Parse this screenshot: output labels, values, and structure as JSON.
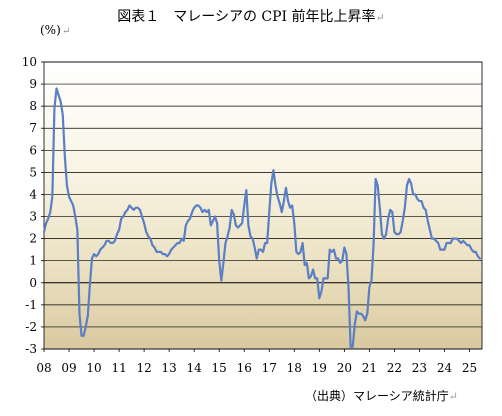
{
  "title": "図表１　マレーシアの CPI 前年比上昇率",
  "source": "（出典）マレーシア統計庁",
  "return_mark": "↵",
  "chart_data": {
    "type": "line",
    "ylabel": "(%)",
    "ylim": [
      -3,
      10
    ],
    "yticks": [
      10,
      9,
      8,
      7,
      6,
      5,
      4,
      3,
      2,
      1,
      0,
      -1,
      -2,
      -3
    ],
    "x_tick_labels": [
      "08",
      "09",
      "10",
      "11",
      "12",
      "13",
      "14",
      "15",
      "16",
      "17",
      "18",
      "19",
      "20",
      "21",
      "22",
      "23",
      "24",
      "25"
    ],
    "x_unit": "year (2008–2025, monthly)",
    "grid": true,
    "series": [
      {
        "color": "#5b7fc4",
        "points": [
          [
            "2008-01",
            2.3
          ],
          [
            "2008-02",
            2.7
          ],
          [
            "2008-03",
            2.9
          ],
          [
            "2008-04",
            3.2
          ],
          [
            "2008-05",
            3.9
          ],
          [
            "2008-06",
            7.9
          ],
          [
            "2008-07",
            8.8
          ],
          [
            "2008-08",
            8.5
          ],
          [
            "2008-09",
            8.2
          ],
          [
            "2008-10",
            7.6
          ],
          [
            "2008-11",
            5.7
          ],
          [
            "2008-12",
            4.4
          ],
          [
            "2009-01",
            3.9
          ],
          [
            "2009-02",
            3.7
          ],
          [
            "2009-03",
            3.5
          ],
          [
            "2009-04",
            3.0
          ],
          [
            "2009-05",
            2.4
          ],
          [
            "2009-06",
            -1.4
          ],
          [
            "2009-07",
            -2.4
          ],
          [
            "2009-08",
            -2.4
          ],
          [
            "2009-09",
            -2.0
          ],
          [
            "2009-10",
            -1.5
          ],
          [
            "2009-11",
            -0.1
          ],
          [
            "2009-12",
            1.1
          ],
          [
            "2010-01",
            1.3
          ],
          [
            "2010-02",
            1.2
          ],
          [
            "2010-03",
            1.3
          ],
          [
            "2010-04",
            1.5
          ],
          [
            "2010-05",
            1.6
          ],
          [
            "2010-06",
            1.7
          ],
          [
            "2010-07",
            1.9
          ],
          [
            "2010-08",
            1.9
          ],
          [
            "2010-09",
            1.8
          ],
          [
            "2010-10",
            1.8
          ],
          [
            "2010-11",
            1.9
          ],
          [
            "2010-12",
            2.2
          ],
          [
            "2011-01",
            2.4
          ],
          [
            "2011-02",
            2.9
          ],
          [
            "2011-03",
            3.0
          ],
          [
            "2011-04",
            3.2
          ],
          [
            "2011-05",
            3.3
          ],
          [
            "2011-06",
            3.5
          ],
          [
            "2011-07",
            3.4
          ],
          [
            "2011-08",
            3.3
          ],
          [
            "2011-09",
            3.4
          ],
          [
            "2011-10",
            3.4
          ],
          [
            "2011-11",
            3.3
          ],
          [
            "2011-12",
            3.0
          ],
          [
            "2012-01",
            2.7
          ],
          [
            "2012-02",
            2.3
          ],
          [
            "2012-03",
            2.1
          ],
          [
            "2012-04",
            2.0
          ],
          [
            "2012-05",
            1.7
          ],
          [
            "2012-06",
            1.6
          ],
          [
            "2012-07",
            1.4
          ],
          [
            "2012-08",
            1.4
          ],
          [
            "2012-09",
            1.4
          ],
          [
            "2012-10",
            1.3
          ],
          [
            "2012-11",
            1.3
          ],
          [
            "2012-12",
            1.2
          ],
          [
            "2013-01",
            1.3
          ],
          [
            "2013-02",
            1.5
          ],
          [
            "2013-03",
            1.6
          ],
          [
            "2013-04",
            1.7
          ],
          [
            "2013-05",
            1.8
          ],
          [
            "2013-06",
            1.8
          ],
          [
            "2013-07",
            2.0
          ],
          [
            "2013-08",
            1.9
          ],
          [
            "2013-09",
            2.6
          ],
          [
            "2013-10",
            2.8
          ],
          [
            "2013-11",
            2.9
          ],
          [
            "2013-12",
            3.2
          ],
          [
            "2014-01",
            3.4
          ],
          [
            "2014-02",
            3.5
          ],
          [
            "2014-03",
            3.5
          ],
          [
            "2014-04",
            3.4
          ],
          [
            "2014-05",
            3.2
          ],
          [
            "2014-06",
            3.3
          ],
          [
            "2014-07",
            3.2
          ],
          [
            "2014-08",
            3.3
          ],
          [
            "2014-09",
            2.6
          ],
          [
            "2014-10",
            2.8
          ],
          [
            "2014-11",
            3.0
          ],
          [
            "2014-12",
            2.7
          ],
          [
            "2015-01",
            1.0
          ],
          [
            "2015-02",
            0.1
          ],
          [
            "2015-03",
            0.9
          ],
          [
            "2015-04",
            1.8
          ],
          [
            "2015-05",
            2.1
          ],
          [
            "2015-06",
            2.5
          ],
          [
            "2015-07",
            3.3
          ],
          [
            "2015-08",
            3.1
          ],
          [
            "2015-09",
            2.6
          ],
          [
            "2015-10",
            2.5
          ],
          [
            "2015-11",
            2.6
          ],
          [
            "2015-12",
            2.7
          ],
          [
            "2016-01",
            3.5
          ],
          [
            "2016-02",
            4.2
          ],
          [
            "2016-03",
            2.6
          ],
          [
            "2016-04",
            2.1
          ],
          [
            "2016-05",
            2.0
          ],
          [
            "2016-06",
            1.6
          ],
          [
            "2016-07",
            1.1
          ],
          [
            "2016-08",
            1.5
          ],
          [
            "2016-09",
            1.5
          ],
          [
            "2016-10",
            1.4
          ],
          [
            "2016-11",
            1.8
          ],
          [
            "2016-12",
            1.8
          ],
          [
            "2017-01",
            3.2
          ],
          [
            "2017-02",
            4.5
          ],
          [
            "2017-03",
            5.1
          ],
          [
            "2017-04",
            4.4
          ],
          [
            "2017-05",
            3.9
          ],
          [
            "2017-06",
            3.6
          ],
          [
            "2017-07",
            3.2
          ],
          [
            "2017-08",
            3.7
          ],
          [
            "2017-09",
            4.3
          ],
          [
            "2017-10",
            3.7
          ],
          [
            "2017-11",
            3.4
          ],
          [
            "2017-12",
            3.5
          ],
          [
            "2018-01",
            2.7
          ],
          [
            "2018-02",
            1.4
          ],
          [
            "2018-03",
            1.3
          ],
          [
            "2018-04",
            1.4
          ],
          [
            "2018-05",
            1.8
          ],
          [
            "2018-06",
            0.8
          ],
          [
            "2018-07",
            0.9
          ],
          [
            "2018-08",
            0.2
          ],
          [
            "2018-09",
            0.3
          ],
          [
            "2018-10",
            0.6
          ],
          [
            "2018-11",
            0.2
          ],
          [
            "2018-12",
            0.2
          ],
          [
            "2019-01",
            -0.7
          ],
          [
            "2019-02",
            -0.4
          ],
          [
            "2019-03",
            0.2
          ],
          [
            "2019-04",
            0.2
          ],
          [
            "2019-05",
            0.2
          ],
          [
            "2019-06",
            1.5
          ],
          [
            "2019-07",
            1.4
          ],
          [
            "2019-08",
            1.5
          ],
          [
            "2019-09",
            1.1
          ],
          [
            "2019-10",
            1.1
          ],
          [
            "2019-11",
            0.9
          ],
          [
            "2019-12",
            1.0
          ],
          [
            "2020-01",
            1.6
          ],
          [
            "2020-02",
            1.3
          ],
          [
            "2020-03",
            -0.2
          ],
          [
            "2020-04",
            -2.9
          ],
          [
            "2020-05",
            -2.9
          ],
          [
            "2020-06",
            -1.9
          ],
          [
            "2020-07",
            -1.3
          ],
          [
            "2020-08",
            -1.4
          ],
          [
            "2020-09",
            -1.4
          ],
          [
            "2020-10",
            -1.5
          ],
          [
            "2020-11",
            -1.7
          ],
          [
            "2020-12",
            -1.4
          ],
          [
            "2021-01",
            -0.2
          ],
          [
            "2021-02",
            0.1
          ],
          [
            "2021-03",
            1.7
          ],
          [
            "2021-04",
            4.7
          ],
          [
            "2021-05",
            4.4
          ],
          [
            "2021-06",
            3.4
          ],
          [
            "2021-07",
            2.2
          ],
          [
            "2021-08",
            2.0
          ],
          [
            "2021-09",
            2.2
          ],
          [
            "2021-10",
            2.9
          ],
          [
            "2021-11",
            3.3
          ],
          [
            "2021-12",
            3.2
          ],
          [
            "2022-01",
            2.3
          ],
          [
            "2022-02",
            2.2
          ],
          [
            "2022-03",
            2.2
          ],
          [
            "2022-04",
            2.3
          ],
          [
            "2022-05",
            2.8
          ],
          [
            "2022-06",
            3.4
          ],
          [
            "2022-07",
            4.4
          ],
          [
            "2022-08",
            4.7
          ],
          [
            "2022-09",
            4.5
          ],
          [
            "2022-10",
            4.0
          ],
          [
            "2022-11",
            4.0
          ],
          [
            "2022-12",
            3.8
          ],
          [
            "2023-01",
            3.7
          ],
          [
            "2023-02",
            3.7
          ],
          [
            "2023-03",
            3.4
          ],
          [
            "2023-04",
            3.3
          ],
          [
            "2023-05",
            2.8
          ],
          [
            "2023-06",
            2.4
          ],
          [
            "2023-07",
            2.0
          ],
          [
            "2023-08",
            2.0
          ],
          [
            "2023-09",
            1.9
          ],
          [
            "2023-10",
            1.8
          ],
          [
            "2023-11",
            1.5
          ],
          [
            "2023-12",
            1.5
          ],
          [
            "2024-01",
            1.5
          ],
          [
            "2024-02",
            1.8
          ],
          [
            "2024-03",
            1.8
          ],
          [
            "2024-04",
            1.8
          ],
          [
            "2024-05",
            2.0
          ],
          [
            "2024-06",
            2.0
          ],
          [
            "2024-07",
            2.0
          ],
          [
            "2024-08",
            1.9
          ],
          [
            "2024-09",
            1.8
          ],
          [
            "2024-10",
            1.9
          ],
          [
            "2024-11",
            1.8
          ],
          [
            "2024-12",
            1.7
          ],
          [
            "2025-01",
            1.7
          ],
          [
            "2025-02",
            1.5
          ],
          [
            "2025-03",
            1.4
          ],
          [
            "2025-04",
            1.4
          ],
          [
            "2025-05",
            1.2
          ],
          [
            "2025-06",
            1.1
          ]
        ]
      }
    ]
  }
}
